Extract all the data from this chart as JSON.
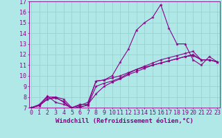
{
  "xlabel": "Windchill (Refroidissement éolien,°C)",
  "bg_color": "#b0e8e8",
  "line_color": "#880088",
  "grid_color": "#96cccc",
  "xmin": 0,
  "xmax": 23,
  "ymin": 7,
  "ymax": 17,
  "line1_y": [
    7.0,
    7.3,
    8.1,
    7.5,
    7.3,
    7.0,
    7.3,
    7.3,
    8.3,
    9.0,
    9.4,
    9.7,
    10.1,
    10.4,
    10.7,
    11.0,
    11.2,
    11.4,
    11.6,
    11.8,
    11.9,
    11.5,
    11.5,
    11.3
  ],
  "line2_y": [
    7.0,
    7.2,
    7.8,
    8.0,
    7.8,
    7.0,
    7.2,
    7.5,
    9.5,
    9.6,
    9.8,
    10.0,
    10.3,
    10.6,
    10.8,
    11.0,
    11.2,
    11.4,
    11.6,
    11.8,
    12.0,
    11.5,
    11.5,
    11.3
  ],
  "line3_y": [
    7.0,
    7.2,
    8.0,
    8.0,
    7.5,
    6.9,
    7.0,
    7.3,
    9.5,
    9.6,
    10.0,
    11.3,
    12.5,
    14.3,
    15.0,
    15.5,
    16.7,
    14.5,
    13.0,
    13.0,
    11.5,
    11.0,
    11.8,
    11.3
  ],
  "line4_y": [
    7.0,
    7.2,
    7.8,
    7.9,
    7.6,
    6.9,
    7.1,
    7.2,
    9.0,
    9.3,
    9.5,
    9.8,
    10.2,
    10.6,
    10.9,
    11.2,
    11.5,
    11.7,
    11.9,
    12.1,
    12.3,
    11.5,
    11.5,
    11.3
  ],
  "xtick_labels": [
    "0",
    "1",
    "2",
    "3",
    "4",
    "5",
    "6",
    "7",
    "8",
    "9",
    "10",
    "11",
    "12",
    "13",
    "14",
    "15",
    "16",
    "17",
    "18",
    "19",
    "20",
    "21",
    "22",
    "23"
  ],
  "ytick_labels": [
    "7",
    "8",
    "9",
    "10",
    "11",
    "12",
    "13",
    "14",
    "15",
    "16",
    "17"
  ],
  "fontsize_xlabel": 6.5,
  "fontsize_tick": 6
}
